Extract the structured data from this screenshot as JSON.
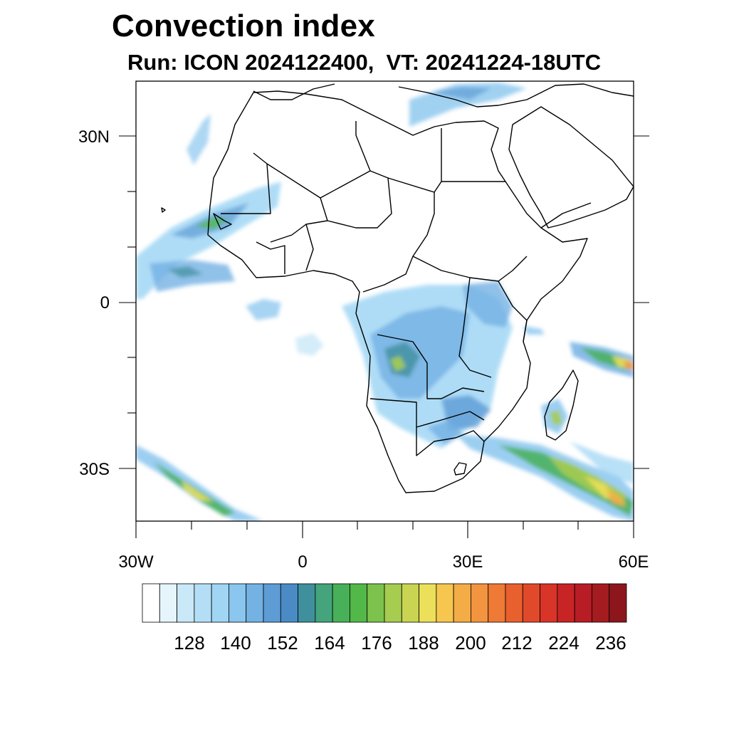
{
  "title": "Convection index",
  "subtitle": "Run: ICON 2024122400,  VT: 20241224-18UTC",
  "map": {
    "lon_range": [
      -30,
      60
    ],
    "lat_range": [
      -40,
      40
    ],
    "lat_labels": [
      "30N",
      "0",
      "30S"
    ],
    "lon_labels": [
      "30W",
      "0",
      "30E",
      "60E"
    ]
  },
  "colorbar": {
    "colors": [
      "#ffffff",
      "#e6f4fc",
      "#c9e8f8",
      "#b3def6",
      "#a0d6f4",
      "#8ac6ee",
      "#74b2e4",
      "#5e9cd6",
      "#4a8bc6",
      "#3f8f9c",
      "#44a47c",
      "#48b058",
      "#52b848",
      "#7cc24c",
      "#a6cc50",
      "#c8d452",
      "#ece05a",
      "#f6c64e",
      "#f4ac46",
      "#f29440",
      "#ee7a36",
      "#e8602e",
      "#e04a2a",
      "#d83428",
      "#c82426",
      "#b81c24",
      "#a41c20",
      "#8c161c"
    ],
    "labels": [
      "128",
      "140",
      "152",
      "164",
      "176",
      "188",
      "200",
      "212",
      "224",
      "236"
    ]
  }
}
